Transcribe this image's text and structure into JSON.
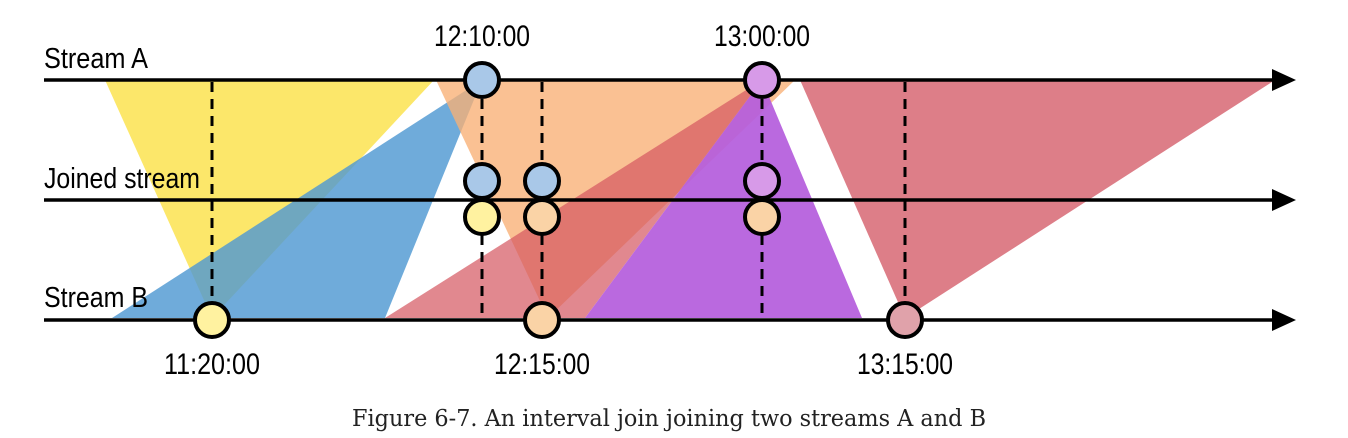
{
  "lanes": {
    "stream_a": "Stream A",
    "joined": "Joined stream",
    "stream_b": "Stream B"
  },
  "times": {
    "a_first": "12:10:00",
    "a_second": "13:00:00",
    "b_first": "11:20:00",
    "b_second": "12:15:00",
    "b_third": "13:15:00"
  },
  "caption": "Figure 6-7. An interval join joining two streams A and B",
  "colors": {
    "event_blue": "#a9c8e8",
    "event_violet": "#d79ae8",
    "event_yellow": "#fff2a0",
    "event_peach": "#fad3a6",
    "event_rose": "#e0a2aa",
    "window_yellow": "#fbe350",
    "window_blue": "#4f98d2",
    "window_red": "#d45560",
    "window_orange": "#f8b074",
    "window_purple": "#b45cdc",
    "window_indigo": "#4a4ed0"
  }
}
